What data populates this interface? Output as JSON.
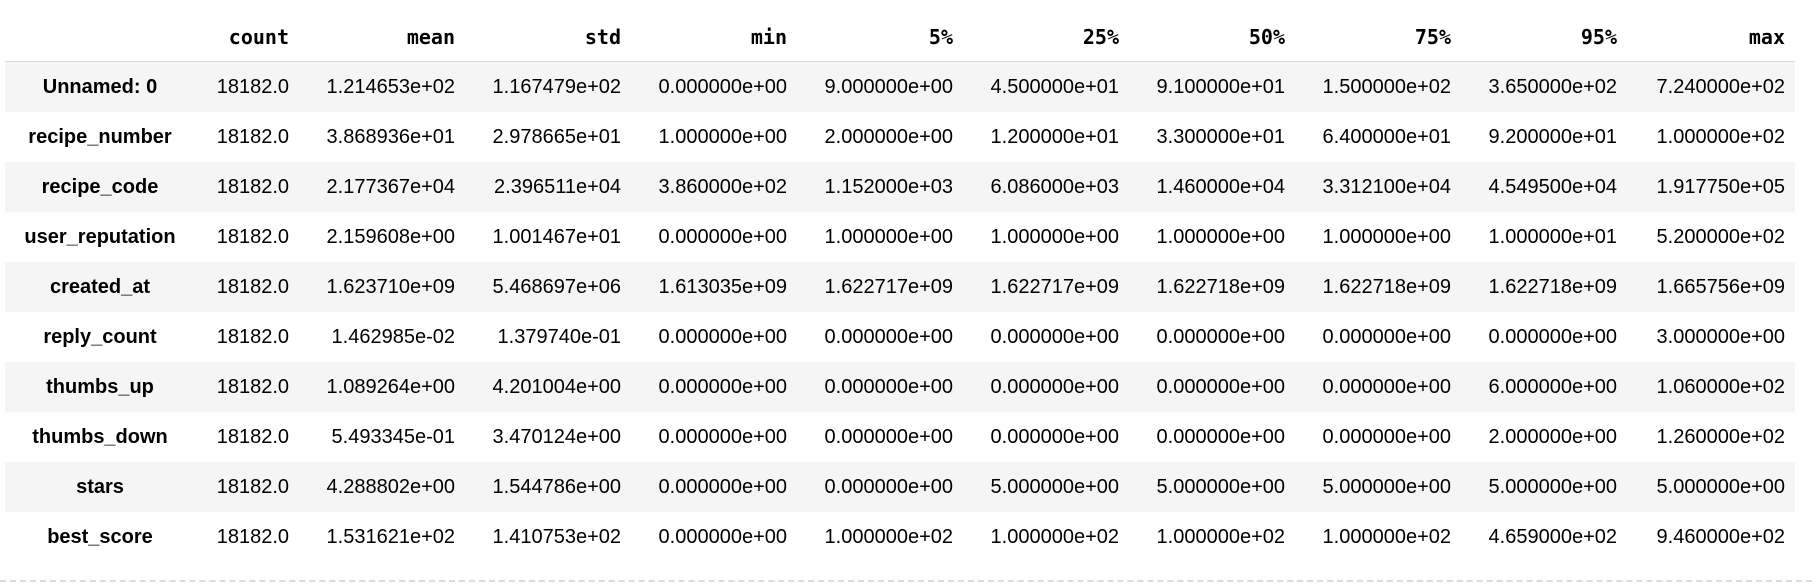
{
  "table": {
    "index_header": "",
    "columns": [
      "count",
      "mean",
      "std",
      "min",
      "5%",
      "25%",
      "50%",
      "75%",
      "95%",
      "max"
    ],
    "rows": [
      {
        "name": "Unnamed: 0",
        "values": [
          "18182.0",
          "1.214653e+02",
          "1.167479e+02",
          "0.000000e+00",
          "9.000000e+00",
          "4.500000e+01",
          "9.100000e+01",
          "1.500000e+02",
          "3.650000e+02",
          "7.240000e+02"
        ]
      },
      {
        "name": "recipe_number",
        "values": [
          "18182.0",
          "3.868936e+01",
          "2.978665e+01",
          "1.000000e+00",
          "2.000000e+00",
          "1.200000e+01",
          "3.300000e+01",
          "6.400000e+01",
          "9.200000e+01",
          "1.000000e+02"
        ]
      },
      {
        "name": "recipe_code",
        "values": [
          "18182.0",
          "2.177367e+04",
          "2.396511e+04",
          "3.860000e+02",
          "1.152000e+03",
          "6.086000e+03",
          "1.460000e+04",
          "3.312100e+04",
          "4.549500e+04",
          "1.917750e+05"
        ]
      },
      {
        "name": "user_reputation",
        "values": [
          "18182.0",
          "2.159608e+00",
          "1.001467e+01",
          "0.000000e+00",
          "1.000000e+00",
          "1.000000e+00",
          "1.000000e+00",
          "1.000000e+00",
          "1.000000e+01",
          "5.200000e+02"
        ]
      },
      {
        "name": "created_at",
        "values": [
          "18182.0",
          "1.623710e+09",
          "5.468697e+06",
          "1.613035e+09",
          "1.622717e+09",
          "1.622717e+09",
          "1.622718e+09",
          "1.622718e+09",
          "1.622718e+09",
          "1.665756e+09"
        ]
      },
      {
        "name": "reply_count",
        "values": [
          "18182.0",
          "1.462985e-02",
          "1.379740e-01",
          "0.000000e+00",
          "0.000000e+00",
          "0.000000e+00",
          "0.000000e+00",
          "0.000000e+00",
          "0.000000e+00",
          "3.000000e+00"
        ]
      },
      {
        "name": "thumbs_up",
        "values": [
          "18182.0",
          "1.089264e+00",
          "4.201004e+00",
          "0.000000e+00",
          "0.000000e+00",
          "0.000000e+00",
          "0.000000e+00",
          "0.000000e+00",
          "6.000000e+00",
          "1.060000e+02"
        ]
      },
      {
        "name": "thumbs_down",
        "values": [
          "18182.0",
          "5.493345e-01",
          "3.470124e+00",
          "0.000000e+00",
          "0.000000e+00",
          "0.000000e+00",
          "0.000000e+00",
          "0.000000e+00",
          "2.000000e+00",
          "1.260000e+02"
        ]
      },
      {
        "name": "stars",
        "values": [
          "18182.0",
          "4.288802e+00",
          "1.544786e+00",
          "0.000000e+00",
          "0.000000e+00",
          "5.000000e+00",
          "5.000000e+00",
          "5.000000e+00",
          "5.000000e+00",
          "5.000000e+00"
        ]
      },
      {
        "name": "best_score",
        "values": [
          "18182.0",
          "1.531621e+02",
          "1.410753e+02",
          "0.000000e+00",
          "1.000000e+02",
          "1.000000e+02",
          "1.000000e+02",
          "1.000000e+02",
          "4.659000e+02",
          "9.460000e+02"
        ]
      }
    ]
  },
  "colors": {
    "stripe": "#f5f5f5",
    "header_border": "#d6d6d6",
    "text": "#000000"
  }
}
